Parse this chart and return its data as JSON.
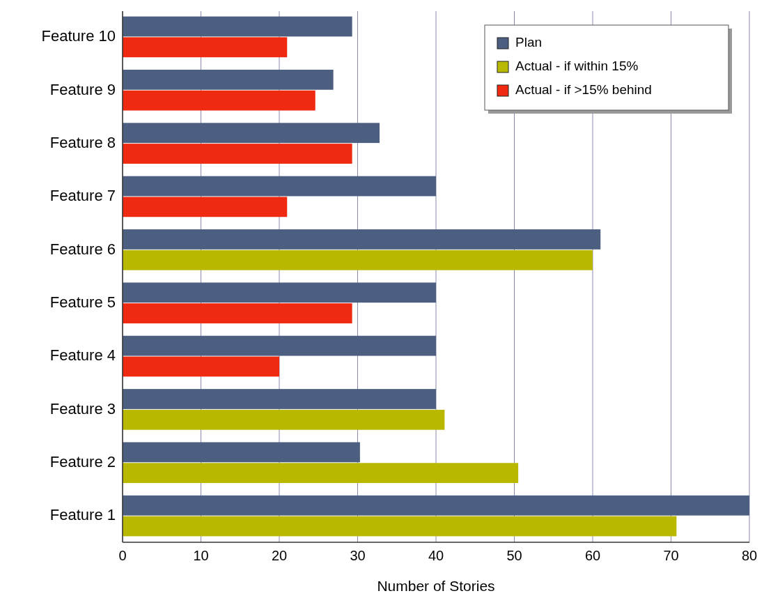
{
  "chart_data": {
    "type": "bar",
    "orientation": "horizontal",
    "xlabel": "Number of Stories",
    "categories": [
      "Feature 10",
      "Feature 9",
      "Feature 8",
      "Feature 7",
      "Feature 6",
      "Feature 5",
      "Feature 4",
      "Feature 3",
      "Feature 2",
      "Feature 1"
    ],
    "series": [
      {
        "name": "Plan",
        "color": "#4d5f80",
        "values": [
          29.3,
          26.9,
          32.8,
          40,
          61,
          40,
          40,
          40,
          30.3,
          80
        ]
      },
      {
        "name": "Actual - if within 15%",
        "color": "#b8b800",
        "values": [
          null,
          null,
          null,
          null,
          60,
          null,
          null,
          41.1,
          50.5,
          70.7
        ]
      },
      {
        "name": "Actual - if >15% behind",
        "color": "#f02a10",
        "values": [
          21,
          24.6,
          29.3,
          21,
          null,
          29.3,
          20,
          null,
          null,
          null
        ]
      }
    ],
    "xlim": [
      0,
      80
    ],
    "xticks": [
      0,
      10,
      20,
      30,
      40,
      50,
      60,
      70,
      80
    ],
    "grid": "x",
    "legend": "top right"
  }
}
